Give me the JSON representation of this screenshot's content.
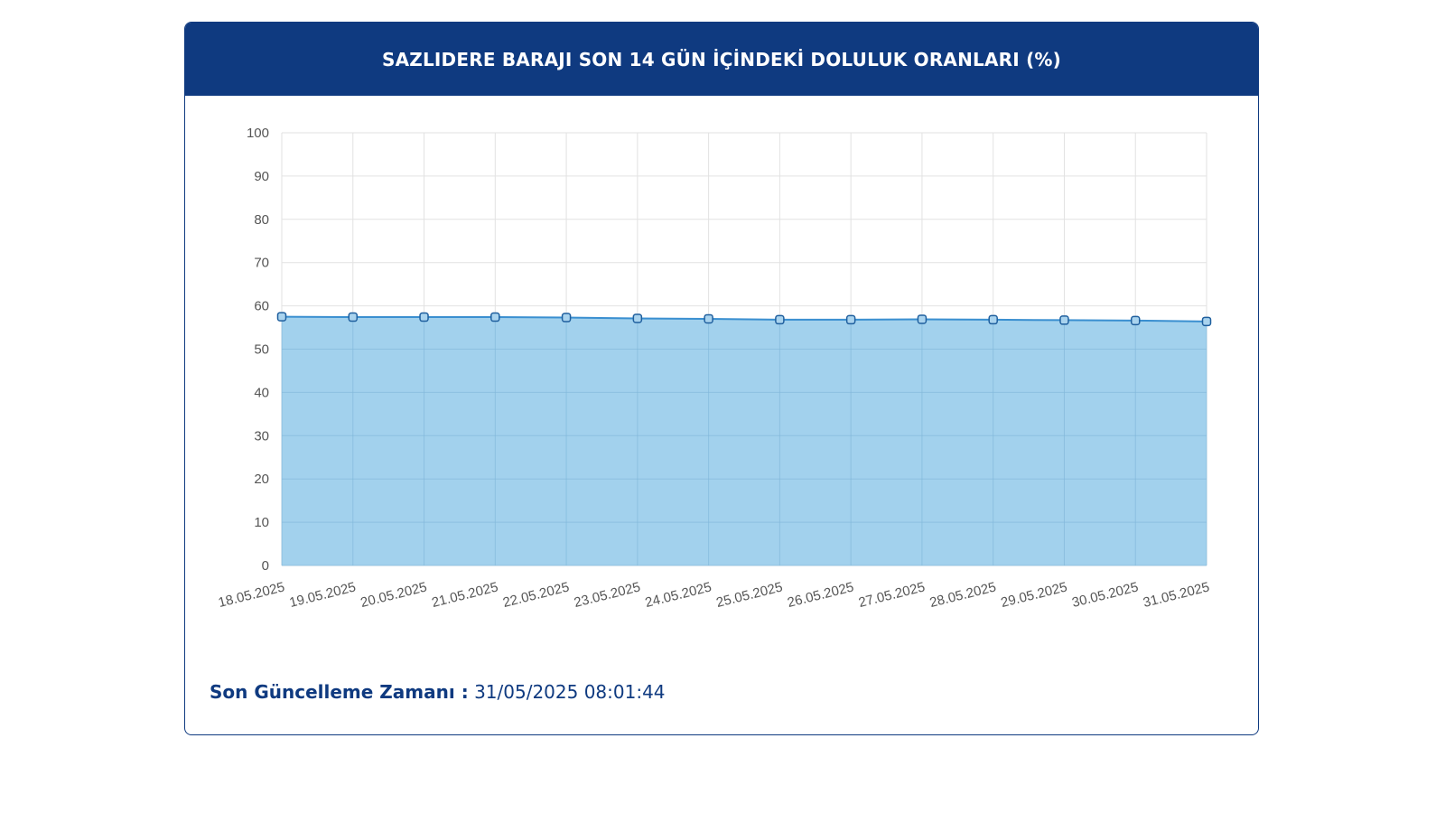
{
  "header": {
    "title": "SAZLIDERE BARAJI SON 14 GÜN İÇİNDEKİ DOLULUK ORANLARI (%)"
  },
  "footer": {
    "label": "Son Güncelleme Zamanı :",
    "value": "31/05/2025 08:01:44"
  },
  "colors": {
    "brand": "#0f3a80",
    "area_fill": "#9dcfec",
    "line": "#3a8fd0",
    "grid": "#e2e2e2",
    "tick_text": "#555555"
  },
  "chart_data": {
    "type": "area",
    "title": "SAZLIDERE BARAJI SON 14 GÜN İÇİNDEKİ DOLULUK ORANLARI (%)",
    "xlabel": "",
    "ylabel": "",
    "ylim": [
      0,
      100
    ],
    "yticks": [
      "0",
      "10",
      "20",
      "30",
      "40",
      "50",
      "60",
      "70",
      "80",
      "90",
      "100"
    ],
    "grid": true,
    "categories": [
      "18.05.2025",
      "19.05.2025",
      "20.05.2025",
      "21.05.2025",
      "22.05.2025",
      "23.05.2025",
      "24.05.2025",
      "25.05.2025",
      "26.05.2025",
      "27.05.2025",
      "28.05.2025",
      "29.05.2025",
      "30.05.2025",
      "31.05.2025"
    ],
    "series": [
      {
        "values": [
          57.5,
          57.4,
          57.4,
          57.4,
          57.3,
          57.1,
          57.0,
          56.8,
          56.8,
          56.9,
          56.8,
          56.7,
          56.6,
          56.4
        ]
      }
    ]
  }
}
